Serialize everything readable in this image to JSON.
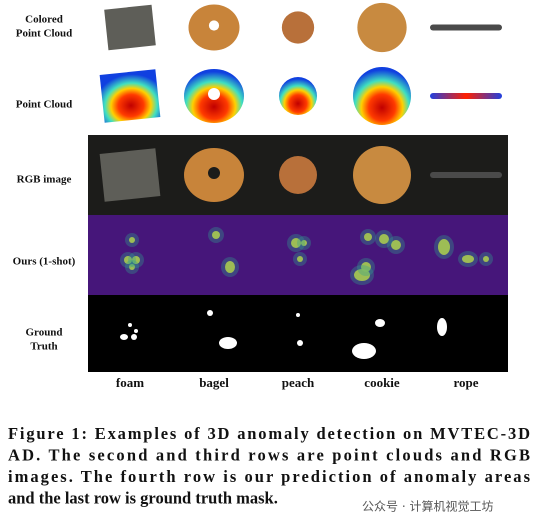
{
  "figure": {
    "row_labels": [
      [
        "Colored",
        "Point Cloud"
      ],
      [
        "Point Cloud"
      ],
      [
        "RGB image"
      ],
      [
        "Ours (1-shot)"
      ],
      [
        "Ground",
        "Truth"
      ]
    ],
    "column_labels": [
      "foam",
      "bagel",
      "peach",
      "cookie",
      "rope"
    ],
    "caption": [
      "Figure 1: Examples of 3D anomaly detection on MVTEC-3D",
      "AD. The second and third rows are point clouds and RGB",
      "images. The fourth row is our prediction of anomaly areas",
      "and the last row is ground truth mask."
    ],
    "watermark": "公众号 · 计算机视觉工坊"
  }
}
